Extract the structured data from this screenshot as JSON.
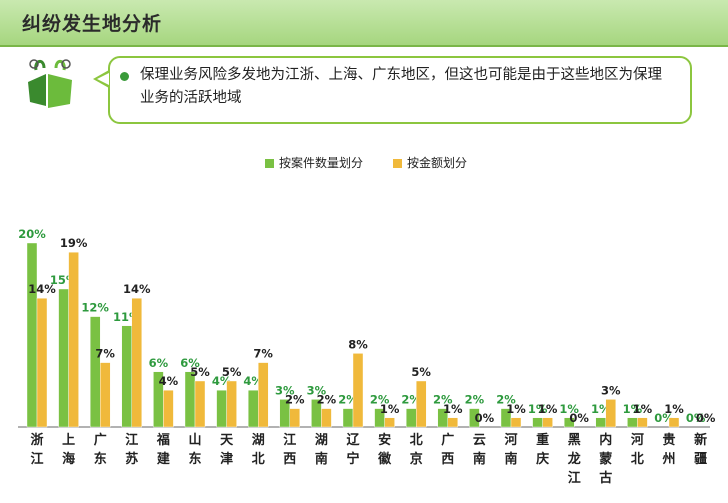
{
  "header": {
    "title": "纠纷发生地分析"
  },
  "callout": {
    "text": "保理业务风险多发地为江浙、上海、广东地区，但这也可能是由于这些地区为保理业务的活跃地域"
  },
  "colors": {
    "green": "#7ac143",
    "gold": "#f0b93b",
    "green_label": "#2e9a3e",
    "header_bg": "#b5dd92"
  },
  "chart_data": {
    "type": "bar",
    "categories": [
      "浙江",
      "上海",
      "广东",
      "江苏",
      "福建",
      "山东",
      "天津",
      "湖北",
      "江西",
      "湖南",
      "辽宁",
      "安徽",
      "北京",
      "广西",
      "云南",
      "河南",
      "重庆",
      "黑龙江",
      "内蒙古",
      "河北",
      "贵州",
      "新疆"
    ],
    "series": [
      {
        "name": "按案件数量划分",
        "color": "#7ac143",
        "values": [
          20,
          15,
          12,
          11,
          6,
          6,
          4,
          4,
          3,
          3,
          2,
          2,
          2,
          2,
          2,
          2,
          1,
          1,
          1,
          1,
          0,
          0
        ]
      },
      {
        "name": "按金额划分",
        "color": "#f0b93b",
        "values": [
          14,
          19,
          7,
          14,
          4,
          5,
          5,
          7,
          2,
          2,
          8,
          1,
          5,
          1,
          0,
          1,
          1,
          0,
          3,
          1,
          1,
          0
        ]
      }
    ],
    "legend_position": "top-center",
    "value_labels": "percent",
    "ylim": [
      0,
      20
    ]
  }
}
